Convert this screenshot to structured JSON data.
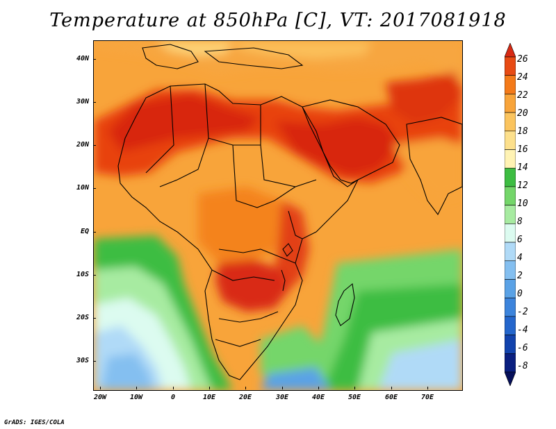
{
  "title": "Temperature at 850hPa [C], VT: 2017081918",
  "credit": "GrADS: IGES/COLA",
  "lat_labels": [
    "40N",
    "30N",
    "20N",
    "10N",
    "EQ",
    "10S",
    "20S",
    "30S"
  ],
  "lon_labels": [
    "20W",
    "10W",
    "0",
    "10E",
    "20E",
    "30E",
    "40E",
    "50E",
    "60E",
    "70E"
  ],
  "colorbar": {
    "labels": [
      "26",
      "24",
      "22",
      "20",
      "18",
      "16",
      "14",
      "12",
      "10",
      "8",
      "6",
      "4",
      "2",
      "0",
      "-2",
      "-4",
      "-6",
      "-8"
    ],
    "colors": [
      "#d82a14",
      "#e84b14",
      "#f47a19",
      "#f8a43a",
      "#fbc45e",
      "#fde08c",
      "#fff3b4",
      "#3dbd42",
      "#74d66a",
      "#a7eba1",
      "#dcfbf0",
      "#b0daf7",
      "#84bff0",
      "#5aa2e6",
      "#3c84dc",
      "#2466cc",
      "#1243ad",
      "#0a1f80",
      "#06105a"
    ]
  }
}
